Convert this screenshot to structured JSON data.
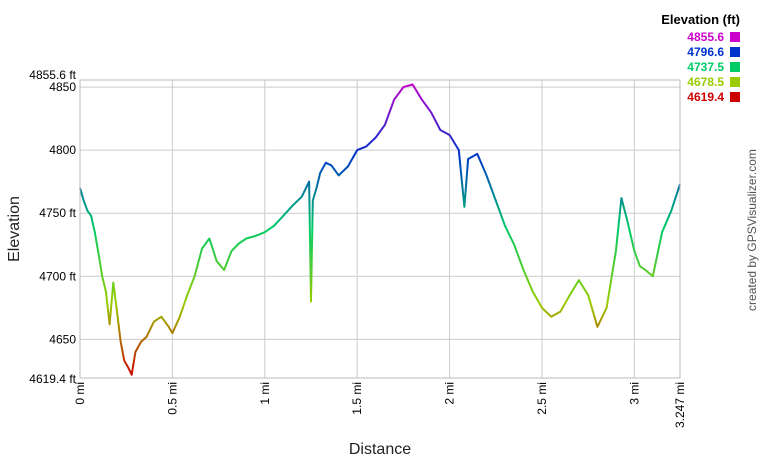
{
  "chart_data": {
    "type": "line",
    "xlabel": "Distance",
    "ylabel": "Elevation",
    "xlim": [
      0,
      3.247
    ],
    "ylim": [
      4619.4,
      4855.6
    ],
    "x_ticks": [
      0,
      0.5,
      1,
      1.5,
      2,
      2.5,
      3,
      3.247
    ],
    "x_tick_labels": [
      "0 mi",
      "0.5 mi",
      "1 mi",
      "1.5 mi",
      "2 mi",
      "2.5 mi",
      "3 mi",
      "3.247 mi"
    ],
    "y_ticks": [
      4619.4,
      4650,
      4700,
      4750,
      4800,
      4850,
      4855.6
    ],
    "y_tick_labels": [
      "4619.4 ft",
      "4650",
      "4700 ft",
      "4750 ft",
      "4800",
      "4850",
      "4855.6 ft"
    ],
    "grid": true,
    "legend": {
      "title": "Elevation (ft)",
      "placement": "top-right",
      "entries": [
        {
          "label": "4855.6",
          "color": "#cc00cc"
        },
        {
          "label": "4796.6",
          "color": "#0033cc"
        },
        {
          "label": "4737.5",
          "color": "#00cc66"
        },
        {
          "label": "4678.5",
          "color": "#99cc00"
        },
        {
          "label": "4619.4",
          "color": "#cc0000"
        }
      ]
    },
    "credit": "created by GPSVisualizer.com",
    "series": [
      {
        "x": [
          0,
          0.02,
          0.04,
          0.06,
          0.08,
          0.1,
          0.12,
          0.14,
          0.16,
          0.18,
          0.2,
          0.22,
          0.24,
          0.26,
          0.28,
          0.3,
          0.33,
          0.36,
          0.4,
          0.44,
          0.48,
          0.5,
          0.54,
          0.58,
          0.62,
          0.66,
          0.7,
          0.74,
          0.78,
          0.82,
          0.86,
          0.9,
          0.95,
          1.0,
          1.05,
          1.1,
          1.15,
          1.2,
          1.24,
          1.25,
          1.26,
          1.28,
          1.3,
          1.33,
          1.36,
          1.4,
          1.45,
          1.5,
          1.55,
          1.6,
          1.65,
          1.7,
          1.75,
          1.8,
          1.85,
          1.9,
          1.95,
          2.0,
          2.05,
          2.08,
          2.1,
          2.15,
          2.2,
          2.25,
          2.3,
          2.35,
          2.4,
          2.45,
          2.5,
          2.55,
          2.6,
          2.65,
          2.7,
          2.75,
          2.8,
          2.85,
          2.9,
          2.93,
          2.96,
          3.0,
          3.03,
          3.06,
          3.1,
          3.15,
          3.2,
          3.247
        ],
        "y": [
          4770,
          4760,
          4752,
          4748,
          4735,
          4718,
          4700,
          4688,
          4662,
          4695,
          4672,
          4648,
          4633,
          4628,
          4622,
          4640,
          4648,
          4652,
          4664,
          4668,
          4660,
          4655,
          4668,
          4685,
          4700,
          4722,
          4730,
          4712,
          4705,
          4720,
          4726,
          4730,
          4732,
          4735,
          4740,
          4748,
          4756,
          4763,
          4775,
          4680,
          4760,
          4770,
          4782,
          4790,
          4788,
          4780,
          4787,
          4800,
          4803,
          4810,
          4820,
          4840,
          4850,
          4852,
          4840,
          4830,
          4816,
          4812,
          4800,
          4755,
          4793,
          4797,
          4780,
          4760,
          4740,
          4725,
          4705,
          4688,
          4675,
          4668,
          4672,
          4685,
          4697,
          4685,
          4660,
          4675,
          4720,
          4762,
          4745,
          4720,
          4708,
          4705,
          4700,
          4735,
          4752,
          4773
        ]
      }
    ]
  }
}
